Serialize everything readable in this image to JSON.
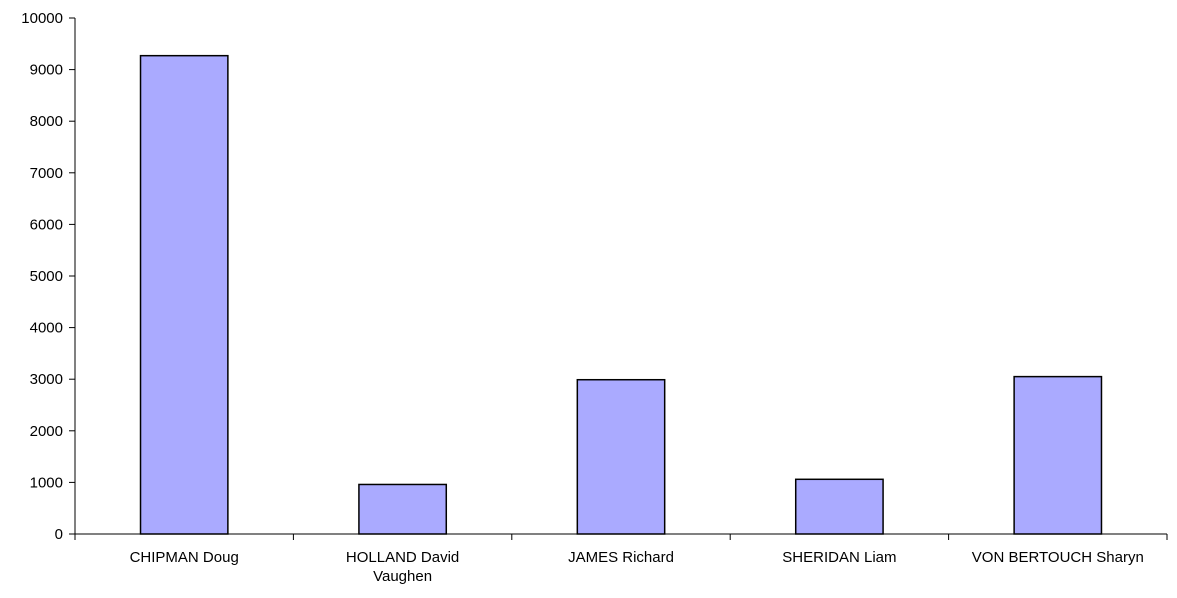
{
  "chart_data": {
    "type": "bar",
    "title": "",
    "xlabel": "",
    "ylabel": "",
    "categories": [
      "CHIPMAN Doug",
      "HOLLAND David Vaughen",
      "JAMES Richard",
      "SHERIDAN Liam",
      "VON BERTOUCH Sharyn"
    ],
    "category_lines": [
      [
        "CHIPMAN Doug"
      ],
      [
        "HOLLAND David",
        "Vaughen"
      ],
      [
        "JAMES Richard"
      ],
      [
        "SHERIDAN Liam"
      ],
      [
        "VON BERTOUCH Sharyn"
      ]
    ],
    "values": [
      9270,
      960,
      2990,
      1060,
      3050
    ],
    "ylim": [
      0,
      10000
    ],
    "yticks": [
      0,
      1000,
      2000,
      3000,
      4000,
      5000,
      6000,
      7000,
      8000,
      9000,
      10000
    ],
    "grid": false,
    "legend": "none",
    "bar_color": "#aaaaff",
    "bar_edge_color": "#000000"
  }
}
